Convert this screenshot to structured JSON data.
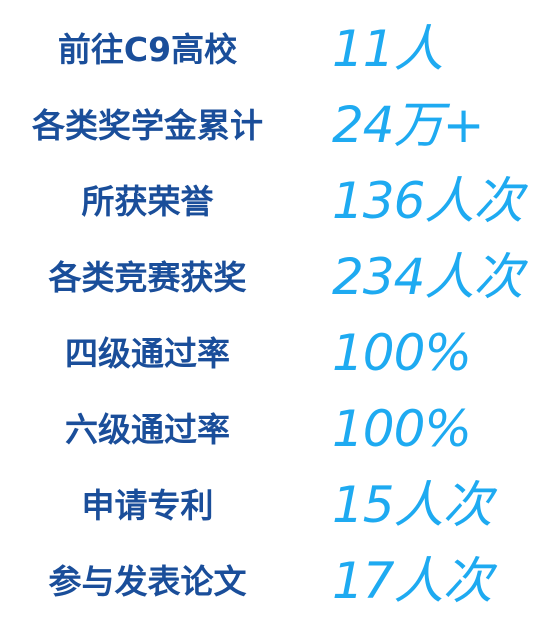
{
  "colors": {
    "label": "#1a4e9a",
    "value": "#1eaaf1",
    "background": "#ffffff"
  },
  "stats": [
    {
      "label": "前往C9高校",
      "value": "11人"
    },
    {
      "label": "各类奖学金累计",
      "value": "24万+"
    },
    {
      "label": "所获荣誉",
      "value": "136人次"
    },
    {
      "label": "各类竞赛获奖",
      "value": "234人次"
    },
    {
      "label": "四级通过率",
      "value": "100%"
    },
    {
      "label": "六级通过率",
      "value": "100%"
    },
    {
      "label": "申请专利",
      "value": "15人次"
    },
    {
      "label": "参与发表论文",
      "value": "17人次"
    }
  ]
}
